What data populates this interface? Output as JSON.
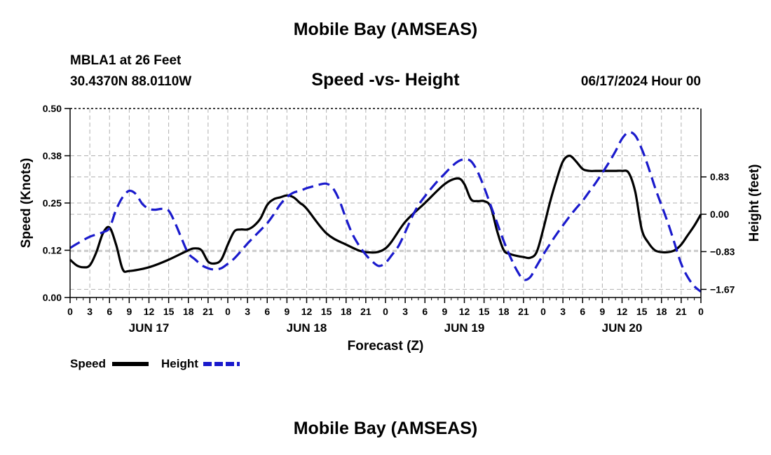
{
  "header": {
    "title_top": "Mobile Bay (AMSEAS)",
    "station": "MBLA1 at 26 Feet",
    "coordinates": "30.4370N  88.0110W",
    "subtitle": "Speed -vs- Height",
    "date": "06/17/2024 Hour 00",
    "title_bottom": "Mobile Bay (AMSEAS)"
  },
  "colors": {
    "speed": "#000000",
    "height": "#1a1acc",
    "grid": "#b0b0b0"
  },
  "chart_data": {
    "type": "line",
    "title": "Speed -vs- Height",
    "xlabel": "Forecast (Z)",
    "ylabel": "Speed (Knots)",
    "y2label": "Height (feet)",
    "xlim": [
      0,
      96
    ],
    "ylim": [
      0,
      0.5
    ],
    "y2lim": [
      -1.85,
      2.35
    ],
    "x_ticks": [
      0,
      3,
      6,
      9,
      12,
      15,
      18,
      21,
      24,
      27,
      30,
      33,
      36,
      39,
      42,
      45,
      48,
      51,
      54,
      57,
      60,
      63,
      66,
      69,
      72,
      75,
      78,
      81,
      84,
      87,
      90,
      93,
      96
    ],
    "x_tick_labels": [
      "0",
      "3",
      "6",
      "9",
      "12",
      "15",
      "18",
      "21",
      "0",
      "3",
      "6",
      "9",
      "12",
      "15",
      "18",
      "21",
      "0",
      "3",
      "6",
      "9",
      "12",
      "15",
      "18",
      "21",
      "0",
      "3",
      "6",
      "9",
      "12",
      "15",
      "18",
      "21",
      "0"
    ],
    "day_labels": [
      {
        "label": "JUN 17",
        "hour": 12
      },
      {
        "label": "JUN 18",
        "hour": 36
      },
      {
        "label": "JUN 19",
        "hour": 60
      },
      {
        "label": "JUN 20",
        "hour": 84
      }
    ],
    "y_ticks": [
      0.0,
      0.125,
      0.25,
      0.375,
      0.5
    ],
    "y_tick_labels": [
      "0.00",
      "0.12",
      "0.25",
      "0.38",
      "0.50"
    ],
    "y2_ticks": [
      0.83,
      0.0,
      -0.83,
      -1.67
    ],
    "y2_tick_labels": [
      "0.83",
      "0.00",
      "−0.83",
      "−1.67"
    ],
    "series": [
      {
        "name": "Speed",
        "axis": "left",
        "style": "solid",
        "color": "#000000",
        "x": [
          0,
          1,
          2,
          3,
          4,
          5,
          6,
          7,
          8,
          9,
          12,
          15,
          18,
          19,
          20,
          21,
          22,
          23,
          24,
          25,
          26,
          27,
          28,
          29,
          30,
          31,
          32,
          33,
          34,
          35,
          36,
          39,
          42,
          45,
          48,
          51,
          54,
          57,
          59,
          60,
          61,
          62,
          63,
          64,
          65,
          66,
          67,
          68,
          69,
          70,
          71,
          72,
          73,
          74,
          75,
          76,
          77,
          78,
          79,
          80,
          81,
          82,
          83,
          84,
          85,
          86,
          87,
          88,
          89,
          90,
          91,
          92,
          93,
          94,
          95,
          96
        ],
        "values": [
          0.1,
          0.085,
          0.08,
          0.085,
          0.12,
          0.17,
          0.185,
          0.14,
          0.075,
          0.07,
          0.08,
          0.1,
          0.125,
          0.13,
          0.125,
          0.095,
          0.09,
          0.1,
          0.14,
          0.175,
          0.18,
          0.18,
          0.19,
          0.21,
          0.245,
          0.26,
          0.265,
          0.27,
          0.265,
          0.25,
          0.235,
          0.17,
          0.14,
          0.12,
          0.13,
          0.2,
          0.25,
          0.3,
          0.315,
          0.3,
          0.26,
          0.255,
          0.255,
          0.24,
          0.175,
          0.125,
          0.115,
          0.11,
          0.107,
          0.105,
          0.12,
          0.18,
          0.25,
          0.31,
          0.36,
          0.375,
          0.36,
          0.34,
          0.335,
          0.335,
          0.335,
          0.335,
          0.335,
          0.335,
          0.33,
          0.28,
          0.18,
          0.145,
          0.125,
          0.12,
          0.12,
          0.125,
          0.14,
          0.165,
          0.19,
          0.22
        ]
      },
      {
        "name": "Height",
        "axis": "right",
        "style": "dashed",
        "color": "#1a1acc",
        "x": [
          0,
          1,
          3,
          5,
          6,
          7,
          8,
          9,
          10,
          11,
          12,
          13,
          14,
          15,
          16,
          17,
          18,
          19,
          20,
          21,
          22,
          23,
          24,
          25,
          26,
          27,
          28,
          29,
          30,
          31,
          32,
          33,
          34,
          35,
          36,
          37,
          38,
          39,
          40,
          41,
          42,
          43,
          44,
          45,
          46,
          47,
          48,
          49,
          50,
          51,
          52,
          53,
          54,
          55,
          56,
          57,
          58,
          59,
          60,
          61,
          62,
          63,
          64,
          65,
          66,
          67,
          68,
          69,
          70,
          71,
          72,
          73,
          74,
          75,
          76,
          77,
          78,
          79,
          80,
          81,
          82,
          83,
          84,
          85,
          86,
          87,
          88,
          89,
          90,
          91,
          92,
          93,
          94,
          95,
          96
        ],
        "values": [
          -0.75,
          -0.66,
          -0.5,
          -0.4,
          -0.3,
          0.1,
          0.38,
          0.52,
          0.45,
          0.23,
          0.12,
          0.1,
          0.12,
          0.08,
          -0.2,
          -0.55,
          -0.87,
          -1.0,
          -1.13,
          -1.2,
          -1.23,
          -1.2,
          -1.1,
          -0.98,
          -0.82,
          -0.65,
          -0.5,
          -0.35,
          -0.2,
          0.0,
          0.22,
          0.38,
          0.48,
          0.52,
          0.58,
          0.62,
          0.66,
          0.68,
          0.58,
          0.3,
          -0.1,
          -0.45,
          -0.7,
          -0.9,
          -1.05,
          -1.15,
          -1.08,
          -0.9,
          -0.7,
          -0.4,
          -0.07,
          0.2,
          0.4,
          0.58,
          0.75,
          0.9,
          1.05,
          1.17,
          1.22,
          1.18,
          0.95,
          0.6,
          0.2,
          -0.2,
          -0.6,
          -0.95,
          -1.25,
          -1.45,
          -1.4,
          -1.15,
          -0.9,
          -0.67,
          -0.45,
          -0.25,
          -0.05,
          0.13,
          0.3,
          0.5,
          0.7,
          0.92,
          1.15,
          1.4,
          1.68,
          1.82,
          1.75,
          1.45,
          1.05,
          0.6,
          0.2,
          -0.2,
          -0.65,
          -1.1,
          -1.4,
          -1.6,
          -1.72
        ]
      }
    ],
    "legend": [
      {
        "label": "Speed",
        "style": "solid",
        "color": "#000000"
      },
      {
        "label": "Height",
        "style": "dashed",
        "color": "#1a1acc"
      }
    ],
    "legend_position": "bottom-left",
    "grid": true
  }
}
